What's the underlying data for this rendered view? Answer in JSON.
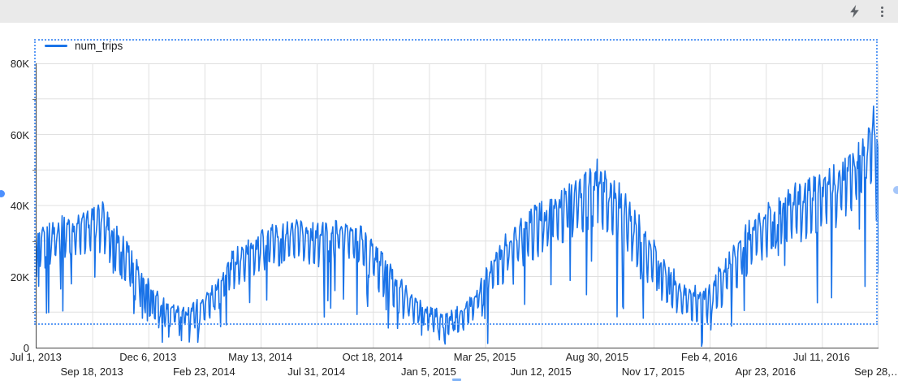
{
  "topbar": {
    "background": "#eaeaea",
    "icon_color": "#5f6368",
    "icons": [
      {
        "name": "lightning-bolt"
      },
      {
        "name": "kebab-menu"
      }
    ]
  },
  "legend": {
    "series_label": "num_trips",
    "swatch_color": "#1a73e8"
  },
  "selection": {
    "selected": true,
    "border_color": "#5c9bf5",
    "handle_color": "#4d90fe"
  },
  "chart_data": {
    "type": "line",
    "title": "",
    "xlabel": "",
    "ylabel": "",
    "legend_position": "top-left",
    "grid": true,
    "series_name": "num_trips",
    "series_color": "#1a73e8",
    "granularity": "daily",
    "units": "trips (values in thousands)",
    "x_axis": {
      "start_date": "2013-07-01",
      "end_date": "2016-09-28",
      "total_days": 1185,
      "tick_interval_days": 79,
      "tick_labels": [
        "Jul 1, 2013",
        "Sep 18, 2013",
        "Dec 6, 2013",
        "Feb 23, 2014",
        "May 13, 2014",
        "Jul 31, 2014",
        "Oct 18, 2014",
        "Jan 5, 2015",
        "Mar 25, 2015",
        "Jun 12, 2015",
        "Aug 30, 2015",
        "Nov 17, 2015",
        "Feb 4, 2016",
        "Apr 23, 2016",
        "Jul 11, 2016",
        "Sep 28,…"
      ]
    },
    "y_axis": {
      "min": 0,
      "max_k": 80,
      "grid_step_k": 10,
      "label_step_k": 20,
      "tick_labels": [
        "0",
        "20K",
        "40K",
        "60K",
        "80K"
      ],
      "tick_values_k": [
        0,
        20,
        40,
        60,
        80
      ]
    },
    "pattern": "noisy daily series: weekday highs, weekend lows, seasonal summer peaks and winter troughs",
    "envelope": [
      {
        "date": "2013-07-01",
        "high": 33,
        "low": 19
      },
      {
        "date": "2013-08-01",
        "high": 37,
        "low": 24
      },
      {
        "date": "2013-09-01",
        "high": 38,
        "low": 25
      },
      {
        "date": "2013-10-01",
        "high": 41,
        "low": 26
      },
      {
        "date": "2013-11-01",
        "high": 32,
        "low": 17
      },
      {
        "date": "2013-12-01",
        "high": 22,
        "low": 9
      },
      {
        "date": "2014-01-01",
        "high": 13,
        "low": 5
      },
      {
        "date": "2014-02-01",
        "high": 12,
        "low": 4
      },
      {
        "date": "2014-03-01",
        "high": 17,
        "low": 7
      },
      {
        "date": "2014-04-01",
        "high": 27,
        "low": 14
      },
      {
        "date": "2014-05-01",
        "high": 32,
        "low": 19
      },
      {
        "date": "2014-06-01",
        "high": 35,
        "low": 22
      },
      {
        "date": "2014-07-01",
        "high": 36,
        "low": 23
      },
      {
        "date": "2014-08-01",
        "high": 35,
        "low": 22
      },
      {
        "date": "2014-09-01",
        "high": 37,
        "low": 24
      },
      {
        "date": "2014-10-01",
        "high": 35,
        "low": 21
      },
      {
        "date": "2014-11-01",
        "high": 27,
        "low": 13
      },
      {
        "date": "2014-12-01",
        "high": 18,
        "low": 7
      },
      {
        "date": "2015-01-01",
        "high": 12,
        "low": 4
      },
      {
        "date": "2015-02-01",
        "high": 10,
        "low": 3
      },
      {
        "date": "2015-03-01",
        "high": 14,
        "low": 5
      },
      {
        "date": "2015-04-01",
        "high": 26,
        "low": 13
      },
      {
        "date": "2015-05-01",
        "high": 35,
        "low": 20
      },
      {
        "date": "2015-06-01",
        "high": 40,
        "low": 24
      },
      {
        "date": "2015-07-01",
        "high": 44,
        "low": 27
      },
      {
        "date": "2015-08-01",
        "high": 48,
        "low": 30
      },
      {
        "date": "2015-09-01",
        "high": 52,
        "low": 32
      },
      {
        "date": "2015-10-01",
        "high": 46,
        "low": 27
      },
      {
        "date": "2015-11-01",
        "high": 36,
        "low": 18
      },
      {
        "date": "2015-12-01",
        "high": 26,
        "low": 12
      },
      {
        "date": "2016-01-01",
        "high": 18,
        "low": 7
      },
      {
        "date": "2016-02-01",
        "high": 17,
        "low": 6
      },
      {
        "date": "2016-03-01",
        "high": 28,
        "low": 13
      },
      {
        "date": "2016-04-01",
        "high": 37,
        "low": 20
      },
      {
        "date": "2016-05-01",
        "high": 43,
        "low": 25
      },
      {
        "date": "2016-06-01",
        "high": 47,
        "low": 28
      },
      {
        "date": "2016-07-01",
        "high": 49,
        "low": 30
      },
      {
        "date": "2016-08-01",
        "high": 52,
        "low": 33
      },
      {
        "date": "2016-09-01",
        "high": 58,
        "low": 38
      },
      {
        "date": "2016-09-21",
        "high": 68,
        "low": 46
      },
      {
        "date": "2016-09-28",
        "high": 62,
        "low": 44
      }
    ],
    "anomalies": [
      {
        "date": "2013-07-01",
        "value": 20
      },
      {
        "date": "2013-10-02",
        "value": 41
      },
      {
        "date": "2013-12-25",
        "value": 1.5
      },
      {
        "date": "2014-01-03",
        "value": 3
      },
      {
        "date": "2014-01-21",
        "value": 2
      },
      {
        "date": "2014-02-13",
        "value": 1.5
      },
      {
        "date": "2014-12-25",
        "value": 3.5
      },
      {
        "date": "2015-01-26",
        "value": 2
      },
      {
        "date": "2015-01-27",
        "value": 1
      },
      {
        "date": "2015-03-28",
        "value": 1.2
      },
      {
        "date": "2015-08-29",
        "value": 53
      },
      {
        "date": "2015-10-05",
        "value": 11
      },
      {
        "date": "2016-01-23",
        "value": 0.4
      },
      {
        "date": "2016-01-24",
        "value": 1.5
      },
      {
        "date": "2016-02-05",
        "value": 5
      },
      {
        "date": "2016-09-21",
        "value": 68
      },
      {
        "date": "2016-09-28",
        "value": 21
      }
    ]
  }
}
